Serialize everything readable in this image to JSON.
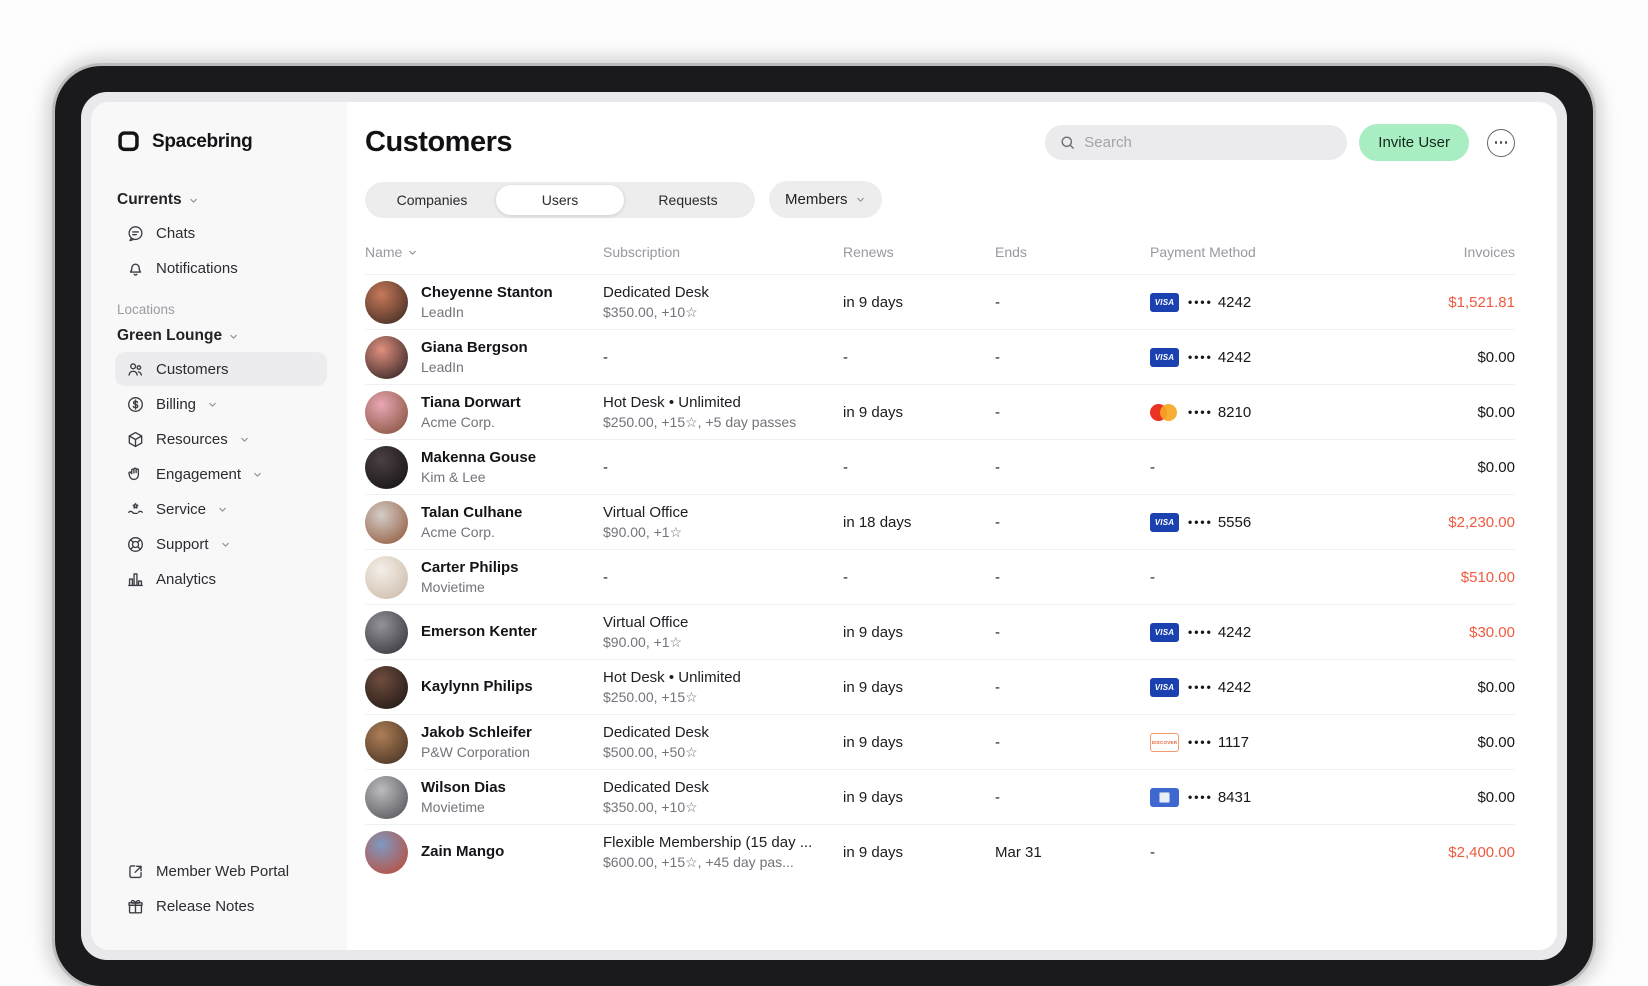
{
  "brand": {
    "name": "Spacebring"
  },
  "sidebar": {
    "currents": {
      "label": "Currents"
    },
    "top_items": [
      {
        "icon": "chat",
        "label": "Chats"
      },
      {
        "icon": "bell",
        "label": "Notifications"
      }
    ],
    "locations_heading": "Locations",
    "location": {
      "label": "Green Lounge"
    },
    "location_items": [
      {
        "icon": "users",
        "label": "Customers",
        "active": true
      },
      {
        "icon": "dollar",
        "label": "Billing",
        "chevron": true
      },
      {
        "icon": "cube",
        "label": "Resources",
        "chevron": true
      },
      {
        "icon": "hand",
        "label": "Engagement",
        "chevron": true
      },
      {
        "icon": "service",
        "label": "Service",
        "chevron": true
      },
      {
        "icon": "lifebuoy",
        "label": "Support",
        "chevron": true
      },
      {
        "icon": "chart",
        "label": "Analytics"
      }
    ],
    "footer_items": [
      {
        "icon": "external",
        "label": "Member Web Portal"
      },
      {
        "icon": "gift",
        "label": "Release Notes"
      }
    ]
  },
  "header": {
    "title": "Customers",
    "search_placeholder": "Search",
    "invite_button": "Invite User"
  },
  "tabs": {
    "segments": [
      {
        "label": "Companies"
      },
      {
        "label": "Users",
        "active": true
      },
      {
        "label": "Requests"
      }
    ],
    "filter": {
      "label": "Members"
    }
  },
  "table": {
    "columns": {
      "name": "Name",
      "subscription": "Subscription",
      "renews": "Renews",
      "ends": "Ends",
      "payment": "Payment Method",
      "invoices": "Invoices"
    },
    "card_dots": "••••",
    "rows": [
      {
        "name": "Cheyenne Stanton",
        "company": "LeadIn",
        "plan": "Dedicated Desk",
        "plan_detail": "$350.00, +10☆",
        "renews": "in 9 days",
        "ends": "-",
        "payment": {
          "type": "visa",
          "last4": "4242"
        },
        "invoices": "$1,521.81",
        "due": true,
        "avatar": [
          "#c8795a",
          "#33241d"
        ]
      },
      {
        "name": "Giana Bergson",
        "company": "LeadIn",
        "plan": "-",
        "plan_detail": "",
        "renews": "-",
        "ends": "-",
        "payment": {
          "type": "visa",
          "last4": "4242"
        },
        "invoices": "$0.00",
        "due": false,
        "avatar": [
          "#e0907e",
          "#231a1e"
        ]
      },
      {
        "name": "Tiana Dorwart",
        "company": "Acme Corp.",
        "plan": "Hot Desk • Unlimited",
        "plan_detail": "$250.00, +15☆, +5 day passes",
        "renews": "in 9 days",
        "ends": "-",
        "payment": {
          "type": "mastercard",
          "last4": "8210"
        },
        "invoices": "$0.00",
        "due": false,
        "avatar": [
          "#e9a7b4",
          "#7c4a32"
        ]
      },
      {
        "name": "Makenna Gouse",
        "company": "Kim & Lee",
        "plan": "-",
        "plan_detail": "",
        "renews": "-",
        "ends": "-",
        "payment": {
          "type": "none",
          "last4": ""
        },
        "invoices": "$0.00",
        "due": false,
        "avatar": [
          "#4a3f44",
          "#121010"
        ]
      },
      {
        "name": "Talan Culhane",
        "company": "Acme Corp.",
        "plan": "Virtual Office",
        "plan_detail": "$90.00, +1☆",
        "renews": "in 18 days",
        "ends": "-",
        "payment": {
          "type": "visa",
          "last4": "5556"
        },
        "invoices": "$2,230.00",
        "due": true,
        "avatar": [
          "#d4cdc7",
          "#8d5236"
        ]
      },
      {
        "name": "Carter Philips",
        "company": "Movietime",
        "plan": "-",
        "plan_detail": "",
        "renews": "-",
        "ends": "-",
        "payment": {
          "type": "none",
          "last4": ""
        },
        "invoices": "$510.00",
        "due": true,
        "avatar": [
          "#f4efe9",
          "#c9b7a5"
        ]
      },
      {
        "name": "Emerson Kenter",
        "company": "",
        "plan": "Virtual Office",
        "plan_detail": "$90.00, +1☆",
        "renews": "in 9 days",
        "ends": "-",
        "payment": {
          "type": "visa",
          "last4": "4242"
        },
        "invoices": "$30.00",
        "due": true,
        "avatar": [
          "#93939a",
          "#2d2d32"
        ]
      },
      {
        "name": "Kaylynn Philips",
        "company": "",
        "plan": "Hot Desk • Unlimited",
        "plan_detail": "$250.00, +15☆",
        "renews": "in 9 days",
        "ends": "-",
        "payment": {
          "type": "visa",
          "last4": "4242"
        },
        "invoices": "$0.00",
        "due": false,
        "avatar": [
          "#6f4d3f",
          "#191310"
        ]
      },
      {
        "name": "Jakob Schleifer",
        "company": "P&W Corporation",
        "plan": "Dedicated Desk",
        "plan_detail": "$500.00, +50☆",
        "renews": "in 9 days",
        "ends": "-",
        "payment": {
          "type": "discover",
          "last4": "1117"
        },
        "invoices": "$0.00",
        "due": false,
        "avatar": [
          "#ad7f57",
          "#3e2b1d"
        ]
      },
      {
        "name": "Wilson Dias",
        "company": "Movietime",
        "plan": "Dedicated Desk",
        "plan_detail": "$350.00, +10☆",
        "renews": "in 9 days",
        "ends": "-",
        "payment": {
          "type": "unionpay",
          "last4": "8431"
        },
        "invoices": "$0.00",
        "due": false,
        "avatar": [
          "#bcbcc0",
          "#4b4b51"
        ]
      },
      {
        "name": "Zain Mango",
        "company": "",
        "plan": "Flexible Membership (15 day ...",
        "plan_detail": "$600.00, +15☆, +45 day pas...",
        "renews": "in 9 days",
        "ends": "Mar 31",
        "payment": {
          "type": "none",
          "last4": ""
        },
        "invoices": "$2,400.00",
        "due": true,
        "avatar": [
          "#7e99c2",
          "#c2452e"
        ]
      }
    ]
  },
  "colors": {
    "accent_green": "#a9eec3",
    "amount_due": "#ee5b40",
    "visa_blue": "#1a41af",
    "mastercard_red": "#eb3323",
    "mastercard_orange": "#f5a623"
  }
}
